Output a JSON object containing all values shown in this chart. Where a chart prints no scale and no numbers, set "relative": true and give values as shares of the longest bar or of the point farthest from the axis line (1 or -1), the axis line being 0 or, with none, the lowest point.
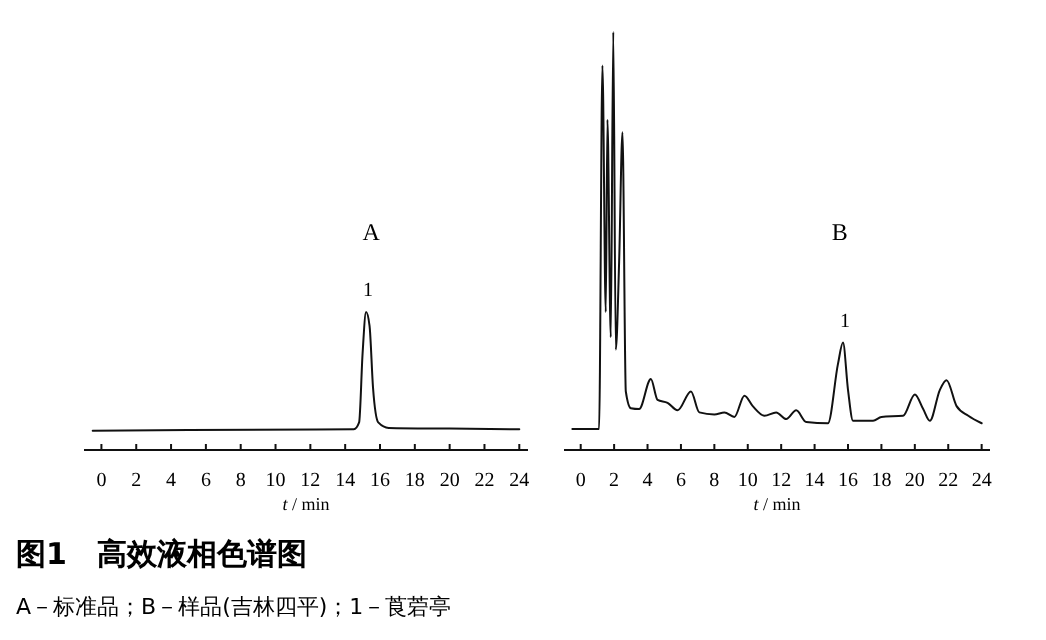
{
  "chart_data": [
    {
      "type": "line",
      "title": "A",
      "xlabel": "t / min",
      "relative": true,
      "color": "#111111",
      "grid": false,
      "marker": "none",
      "line_style": "solid",
      "xlim": [
        -1,
        24.5
      ],
      "xticks": [
        0,
        2,
        4,
        6,
        8,
        10,
        12,
        14,
        16,
        18,
        20,
        22,
        24
      ],
      "x": [
        -0.5,
        5,
        14.5,
        14.8,
        15.0,
        15.2,
        15.4,
        15.6,
        15.9,
        16.5,
        20,
        24
      ],
      "values": [
        0.14,
        0.145,
        0.15,
        0.2,
        0.7,
        1,
        0.9,
        0.45,
        0.2,
        0.16,
        0.155,
        0.15
      ],
      "annotations": [
        {
          "text": "1",
          "x": 15.2,
          "y": 1
        },
        "图1　高效液相色谱图",
        "A－标准品；B－样品(吉林四平)；1－莨菪亭"
      ]
    },
    {
      "type": "line",
      "title": "B",
      "xlabel": "t / min",
      "relative": true,
      "color": "#111111",
      "grid": false,
      "marker": "none",
      "line_style": "solid",
      "xlim": [
        -1,
        24.5
      ],
      "xticks": [
        0,
        2,
        4,
        6,
        8,
        10,
        12,
        14,
        16,
        18,
        20,
        22,
        24
      ],
      "x": [
        -0.5,
        1.1,
        1.3,
        1.5,
        1.6,
        1.8,
        1.95,
        2.1,
        2.3,
        2.5,
        2.7,
        3,
        3.5,
        4.2,
        4.6,
        5.2,
        5.8,
        6.6,
        7.1,
        8,
        8.6,
        9.2,
        9.8,
        10.3,
        11,
        11.7,
        12.3,
        12.9,
        13.5,
        14.8,
        15.4,
        15.7,
        16,
        16.3,
        17.5,
        18,
        19.3,
        20,
        20.5,
        20.9,
        21.5,
        21.9,
        22.5,
        23.2,
        24
      ],
      "values": [
        0.05,
        0.05,
        0.92,
        0.33,
        0.79,
        0.27,
        1,
        0.24,
        0.45,
        0.76,
        0.14,
        0.1,
        0.098,
        0.17,
        0.12,
        0.113,
        0.095,
        0.14,
        0.09,
        0.085,
        0.09,
        0.079,
        0.13,
        0.105,
        0.082,
        0.09,
        0.074,
        0.095,
        0.067,
        0.064,
        0.206,
        0.257,
        0.144,
        0.07,
        0.07,
        0.079,
        0.082,
        0.133,
        0.098,
        0.07,
        0.144,
        0.167,
        0.105,
        0.082,
        0.064
      ],
      "annotations": [
        {
          "text": "1",
          "x": 15.7,
          "y": 0.257
        }
      ]
    }
  ]
}
